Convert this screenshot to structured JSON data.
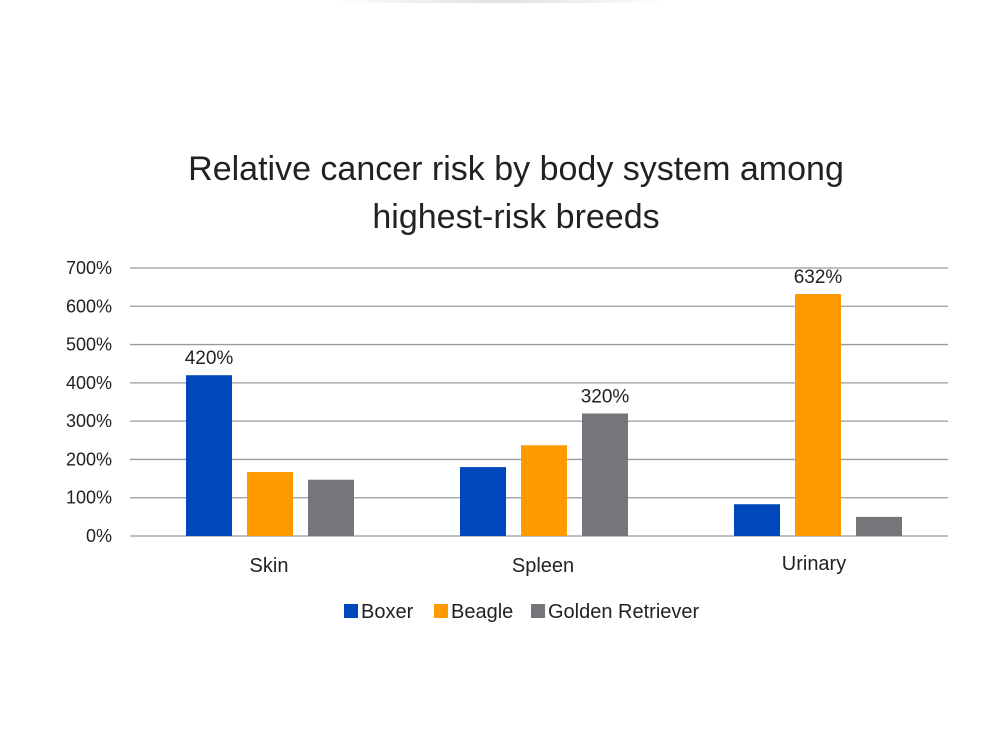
{
  "chart_data": {
    "type": "bar",
    "title": [
      "Relative cancer risk by body system among",
      "highest-risk breeds"
    ],
    "xlabel": "",
    "ylabel": "",
    "ylim": [
      0,
      700
    ],
    "yticks": [
      0,
      100,
      200,
      300,
      400,
      500,
      600,
      700
    ],
    "ytick_labels": [
      "0%",
      "100%",
      "200%",
      "300%",
      "400%",
      "500%",
      "600%",
      "700%"
    ],
    "categories": [
      "Skin",
      "Spleen",
      "Urinary"
    ],
    "series": [
      {
        "name": "Boxer",
        "color": "#0047bb",
        "values": [
          420,
          180,
          83
        ]
      },
      {
        "name": "Beagle",
        "color": "#ff9a00",
        "values": [
          167,
          237,
          632
        ]
      },
      {
        "name": "Golden Retriever",
        "color": "#76767a",
        "values": [
          147,
          320,
          50
        ]
      }
    ],
    "data_labels": [
      {
        "series": 0,
        "category": 0,
        "text": "420%"
      },
      {
        "series": 2,
        "category": 1,
        "text": "320%"
      },
      {
        "series": 1,
        "category": 2,
        "text": "632%"
      }
    ],
    "grid": true,
    "legend_position": "bottom"
  }
}
